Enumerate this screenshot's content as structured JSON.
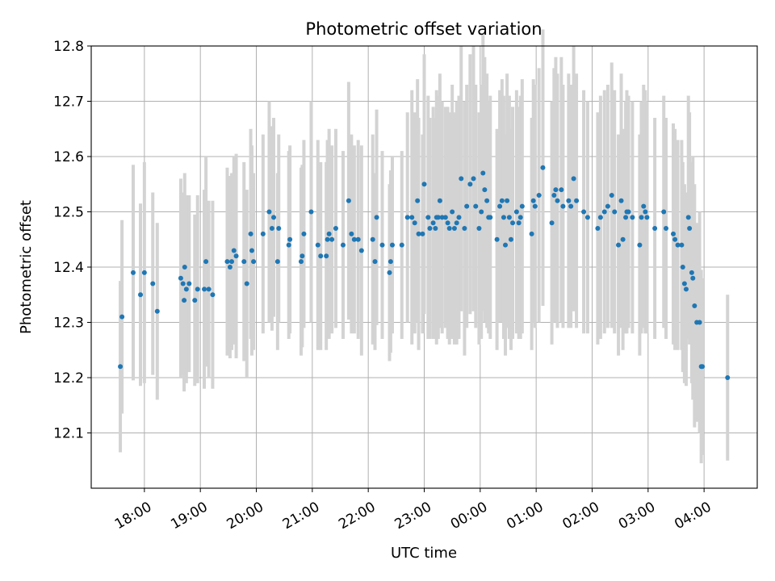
{
  "chart_data": {
    "type": "scatter",
    "title": "Photometric offset variation",
    "xlabel": "UTC time",
    "ylabel": "Photometric offset",
    "x_unit": "hours since 00:00 UTC (negative = previous evening)",
    "xlim": [
      -6.95,
      4.95
    ],
    "ylim": [
      12.0,
      12.8
    ],
    "yticks": [
      12.1,
      12.2,
      12.3,
      12.4,
      12.5,
      12.6,
      12.7,
      12.8
    ],
    "xticks": [
      {
        "value": -6,
        "label": "18:00"
      },
      {
        "value": -5,
        "label": "19:00"
      },
      {
        "value": -4,
        "label": "20:00"
      },
      {
        "value": -3,
        "label": "21:00"
      },
      {
        "value": -2,
        "label": "22:00"
      },
      {
        "value": -1,
        "label": "23:00"
      },
      {
        "value": 0,
        "label": "00:00"
      },
      {
        "value": 1,
        "label": "01:00"
      },
      {
        "value": 2,
        "label": "02:00"
      },
      {
        "value": 3,
        "label": "03:00"
      },
      {
        "value": 4,
        "label": "04:00"
      }
    ],
    "grid": true,
    "colors": {
      "marker": "#1f77b4",
      "errorbar": "#d3d3d3",
      "grid": "#b0b0b0",
      "axis": "#000000"
    },
    "series": [
      {
        "name": "offset",
        "columns": [
          "x_hours",
          "y",
          "yerr"
        ],
        "points": [
          [
            -6.43,
            12.22,
            0.155
          ],
          [
            -6.4,
            12.31,
            0.175
          ],
          [
            -6.2,
            12.39,
            0.195
          ],
          [
            -6.07,
            12.35,
            0.165
          ],
          [
            -6.0,
            12.39,
            0.2
          ],
          [
            -5.85,
            12.37,
            0.165
          ],
          [
            -5.77,
            12.32,
            0.16
          ],
          [
            -5.35,
            12.38,
            0.18
          ],
          [
            -5.31,
            12.37,
            0.165
          ],
          [
            -5.29,
            12.34,
            0.165
          ],
          [
            -5.28,
            12.4,
            0.17
          ],
          [
            -5.25,
            12.36,
            0.17
          ],
          [
            -5.2,
            12.37,
            0.16
          ],
          [
            -5.1,
            12.34,
            0.155
          ],
          [
            -5.05,
            12.36,
            0.17
          ],
          [
            -4.93,
            12.36,
            0.18
          ],
          [
            -4.9,
            12.41,
            0.19
          ],
          [
            -4.85,
            12.36,
            0.16
          ],
          [
            -4.78,
            12.35,
            0.17
          ],
          [
            -4.52,
            12.41,
            0.17
          ],
          [
            -4.47,
            12.4,
            0.165
          ],
          [
            -4.44,
            12.41,
            0.16
          ],
          [
            -4.4,
            12.43,
            0.17
          ],
          [
            -4.36,
            12.42,
            0.185
          ],
          [
            -4.22,
            12.41,
            0.18
          ],
          [
            -4.17,
            12.37,
            0.17
          ],
          [
            -4.1,
            12.46,
            0.19
          ],
          [
            -4.08,
            12.43,
            0.19
          ],
          [
            -4.05,
            12.41,
            0.16
          ],
          [
            -3.88,
            12.46,
            0.18
          ],
          [
            -3.77,
            12.5,
            0.2
          ],
          [
            -3.72,
            12.47,
            0.185
          ],
          [
            -3.69,
            12.49,
            0.18
          ],
          [
            -3.62,
            12.41,
            0.16
          ],
          [
            -3.6,
            12.47,
            0.17
          ],
          [
            -3.42,
            12.44,
            0.17
          ],
          [
            -3.4,
            12.45,
            0.17
          ],
          [
            -3.2,
            12.41,
            0.17
          ],
          [
            -3.18,
            12.42,
            0.165
          ],
          [
            -3.15,
            12.46,
            0.17
          ],
          [
            -3.02,
            12.5,
            0.2
          ],
          [
            -2.9,
            12.44,
            0.19
          ],
          [
            -2.85,
            12.42,
            0.17
          ],
          [
            -2.75,
            12.42,
            0.17
          ],
          [
            -2.73,
            12.45,
            0.18
          ],
          [
            -2.7,
            12.46,
            0.19
          ],
          [
            -2.65,
            12.45,
            0.17
          ],
          [
            -2.58,
            12.47,
            0.18
          ],
          [
            -2.45,
            12.44,
            0.17
          ],
          [
            -2.35,
            12.52,
            0.215
          ],
          [
            -2.3,
            12.46,
            0.18
          ],
          [
            -2.25,
            12.45,
            0.17
          ],
          [
            -2.18,
            12.45,
            0.18
          ],
          [
            -2.12,
            12.43,
            0.19
          ],
          [
            -1.92,
            12.45,
            0.19
          ],
          [
            -1.88,
            12.41,
            0.16
          ],
          [
            -1.85,
            12.49,
            0.195
          ],
          [
            -1.75,
            12.44,
            0.17
          ],
          [
            -1.62,
            12.39,
            0.16
          ],
          [
            -1.6,
            12.41,
            0.165
          ],
          [
            -1.57,
            12.44,
            0.16
          ],
          [
            -1.4,
            12.44,
            0.17
          ],
          [
            -1.3,
            12.49,
            0.19
          ],
          [
            -1.22,
            12.49,
            0.23
          ],
          [
            -1.17,
            12.48,
            0.2
          ],
          [
            -1.12,
            12.52,
            0.22
          ],
          [
            -1.1,
            12.46,
            0.21
          ],
          [
            -1.03,
            12.46,
            0.18
          ],
          [
            -1.0,
            12.55,
            0.235
          ],
          [
            -0.93,
            12.49,
            0.22
          ],
          [
            -0.9,
            12.47,
            0.2
          ],
          [
            -0.84,
            12.48,
            0.21
          ],
          [
            -0.8,
            12.47,
            0.2
          ],
          [
            -0.78,
            12.49,
            0.23
          ],
          [
            -0.75,
            12.49,
            0.22
          ],
          [
            -0.72,
            12.52,
            0.23
          ],
          [
            -0.68,
            12.49,
            0.21
          ],
          [
            -0.62,
            12.49,
            0.2
          ],
          [
            -0.58,
            12.48,
            0.21
          ],
          [
            -0.55,
            12.47,
            0.21
          ],
          [
            -0.5,
            12.5,
            0.23
          ],
          [
            -0.46,
            12.47,
            0.21
          ],
          [
            -0.42,
            12.48,
            0.22
          ],
          [
            -0.38,
            12.49,
            0.22
          ],
          [
            -0.34,
            12.56,
            0.24
          ],
          [
            -0.28,
            12.47,
            0.23
          ],
          [
            -0.24,
            12.51,
            0.22
          ],
          [
            -0.18,
            12.55,
            0.235
          ],
          [
            -0.12,
            12.56,
            0.24
          ],
          [
            -0.08,
            12.51,
            0.22
          ],
          [
            -0.02,
            12.47,
            0.21
          ],
          [
            0.02,
            12.5,
            0.23
          ],
          [
            0.05,
            12.57,
            0.25
          ],
          [
            0.08,
            12.54,
            0.24
          ],
          [
            0.12,
            12.52,
            0.23
          ],
          [
            0.15,
            12.49,
            0.21
          ],
          [
            0.18,
            12.49,
            0.22
          ],
          [
            0.3,
            12.45,
            0.2
          ],
          [
            0.35,
            12.51,
            0.21
          ],
          [
            0.39,
            12.52,
            0.22
          ],
          [
            0.42,
            12.49,
            0.22
          ],
          [
            0.45,
            12.44,
            0.2
          ],
          [
            0.48,
            12.52,
            0.23
          ],
          [
            0.52,
            12.49,
            0.22
          ],
          [
            0.55,
            12.45,
            0.2
          ],
          [
            0.58,
            12.48,
            0.21
          ],
          [
            0.65,
            12.5,
            0.22
          ],
          [
            0.69,
            12.48,
            0.21
          ],
          [
            0.72,
            12.49,
            0.22
          ],
          [
            0.75,
            12.51,
            0.23
          ],
          [
            0.92,
            12.46,
            0.21
          ],
          [
            0.95,
            12.52,
            0.22
          ],
          [
            0.98,
            12.51,
            0.22
          ],
          [
            1.05,
            12.53,
            0.23
          ],
          [
            1.12,
            12.58,
            0.25
          ],
          [
            1.28,
            12.48,
            0.22
          ],
          [
            1.32,
            12.53,
            0.23
          ],
          [
            1.35,
            12.54,
            0.24
          ],
          [
            1.38,
            12.52,
            0.23
          ],
          [
            1.45,
            12.54,
            0.24
          ],
          [
            1.48,
            12.51,
            0.22
          ],
          [
            1.58,
            12.52,
            0.23
          ],
          [
            1.62,
            12.51,
            0.22
          ],
          [
            1.67,
            12.56,
            0.24
          ],
          [
            1.72,
            12.52,
            0.23
          ],
          [
            1.85,
            12.5,
            0.22
          ],
          [
            1.92,
            12.49,
            0.21
          ],
          [
            2.1,
            12.47,
            0.21
          ],
          [
            2.15,
            12.49,
            0.22
          ],
          [
            2.22,
            12.5,
            0.22
          ],
          [
            2.28,
            12.51,
            0.22
          ],
          [
            2.35,
            12.53,
            0.24
          ],
          [
            2.4,
            12.5,
            0.22
          ],
          [
            2.47,
            12.44,
            0.2
          ],
          [
            2.52,
            12.52,
            0.23
          ],
          [
            2.55,
            12.45,
            0.2
          ],
          [
            2.6,
            12.49,
            0.21
          ],
          [
            2.62,
            12.5,
            0.22
          ],
          [
            2.65,
            12.5,
            0.21
          ],
          [
            2.72,
            12.49,
            0.21
          ],
          [
            2.85,
            12.44,
            0.2
          ],
          [
            2.88,
            12.49,
            0.21
          ],
          [
            2.92,
            12.51,
            0.22
          ],
          [
            2.95,
            12.5,
            0.22
          ],
          [
            2.98,
            12.49,
            0.21
          ],
          [
            3.12,
            12.47,
            0.2
          ],
          [
            3.28,
            12.5,
            0.21
          ],
          [
            3.32,
            12.47,
            0.2
          ],
          [
            3.45,
            12.46,
            0.2
          ],
          [
            3.48,
            12.45,
            0.2
          ],
          [
            3.53,
            12.44,
            0.19
          ],
          [
            3.6,
            12.44,
            0.19
          ],
          [
            3.62,
            12.4,
            0.19
          ],
          [
            3.65,
            12.37,
            0.18
          ],
          [
            3.68,
            12.36,
            0.175
          ],
          [
            3.72,
            12.49,
            0.22
          ],
          [
            3.74,
            12.47,
            0.21
          ],
          [
            3.78,
            12.39,
            0.2
          ],
          [
            3.8,
            12.38,
            0.22
          ],
          [
            3.83,
            12.33,
            0.22
          ],
          [
            3.87,
            12.3,
            0.18
          ],
          [
            3.92,
            12.3,
            0.2
          ],
          [
            3.95,
            12.22,
            0.175
          ],
          [
            3.97,
            12.22,
            0.16
          ],
          [
            4.42,
            12.2,
            0.15
          ]
        ]
      }
    ]
  }
}
